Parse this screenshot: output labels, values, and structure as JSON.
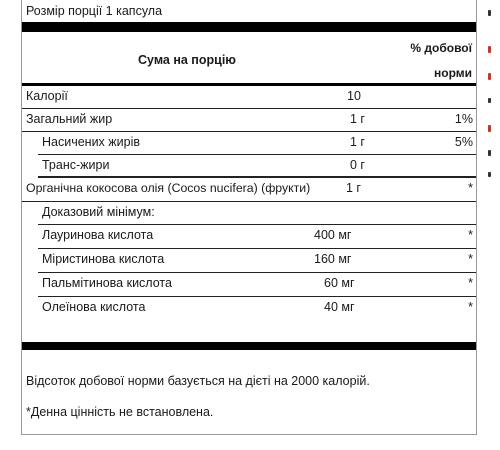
{
  "serving_size": "Розмір порції 1 капсула",
  "header": {
    "amount_per_serving": "Сума на порцію",
    "daily_value_line1": "% добової",
    "daily_value_line2": "норми"
  },
  "rows": [
    {
      "label": "Калорії",
      "amount": "10",
      "pct": ""
    },
    {
      "label": "Загальний жир",
      "amount": "1 г",
      "pct": "1%"
    },
    {
      "label": "Насичених жирів",
      "amount": "1 г",
      "pct": "5%"
    },
    {
      "label": "Транс-жири",
      "amount": "0 г",
      "pct": ""
    },
    {
      "label": "Органічна кокосова олія (Cocos nucifera) (фрукти)",
      "amount": "1 г",
      "pct": "*"
    },
    {
      "label": "Доказовий мінімум:",
      "amount": "",
      "pct": ""
    },
    {
      "label": "Лауринова кислота",
      "amount": "400 мг",
      "pct": "*"
    },
    {
      "label": "Міристинова кислота",
      "amount": "160 мг",
      "pct": "*"
    },
    {
      "label": "Пальмітинова кислота",
      "amount": "60 мг",
      "pct": "*"
    },
    {
      "label": "Олеїнова кислота",
      "amount": "40 мг",
      "pct": "*"
    }
  ],
  "footnotes": {
    "daily_value_note": "Відсоток добової норми базується на дієті на 2000 калорій.",
    "not_established": "*Денна цінність не встановлена."
  }
}
